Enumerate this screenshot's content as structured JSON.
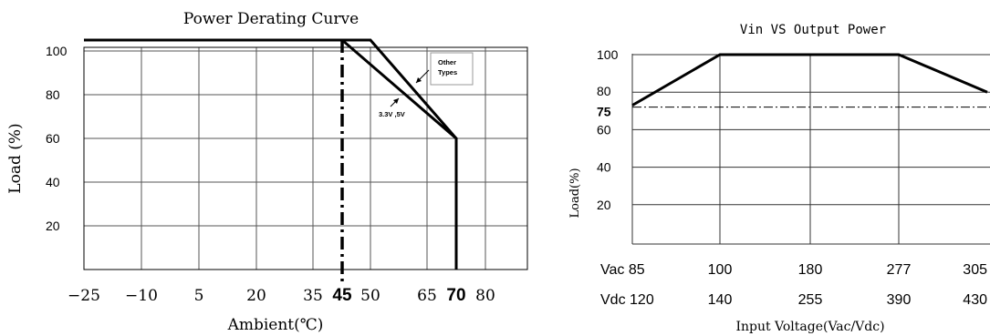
{
  "chart_data": [
    {
      "type": "line",
      "title": "Power Derating Curve",
      "xlabel": "Ambient(℃)",
      "ylabel": "Load (%)",
      "x_ticks": [
        "-25",
        "-10",
        "5",
        "20",
        "35",
        "45",
        "50",
        "65",
        "70",
        "80"
      ],
      "y_ticks": [
        "100",
        "80",
        "60",
        "40",
        "20"
      ],
      "highlight_ticks": [
        "45",
        "70"
      ],
      "series": [
        {
          "name": "Other Types",
          "x": [
            -25,
            50,
            70,
            70
          ],
          "y": [
            105,
            105,
            60,
            0
          ]
        },
        {
          "name": "3.3V ,5V",
          "x": [
            -25,
            45,
            70,
            70
          ],
          "y": [
            105,
            105,
            60,
            0
          ]
        }
      ],
      "vline": {
        "x": 45,
        "style": "dash-dot"
      },
      "grid": true
    },
    {
      "type": "line",
      "title": "Vin VS Output Power",
      "xlabel": "Input Voltage(Vac/Vdc)",
      "ylabel": "Load(%)",
      "x_row1_label": "Vac",
      "x_row1": [
        "85",
        "100",
        "180",
        "277",
        "305"
      ],
      "x_row2_label": "Vdc",
      "x_row2": [
        "120",
        "140",
        "255",
        "390",
        "430"
      ],
      "y_ticks": [
        "100",
        "80",
        "75",
        "60",
        "40",
        "20"
      ],
      "series": [
        {
          "x": [
            "85",
            "100",
            "180",
            "277",
            "305"
          ],
          "y": [
            73,
            100,
            100,
            100,
            80
          ]
        }
      ],
      "hline": {
        "y": 75,
        "style": "dash-dot"
      },
      "grid": true
    }
  ]
}
